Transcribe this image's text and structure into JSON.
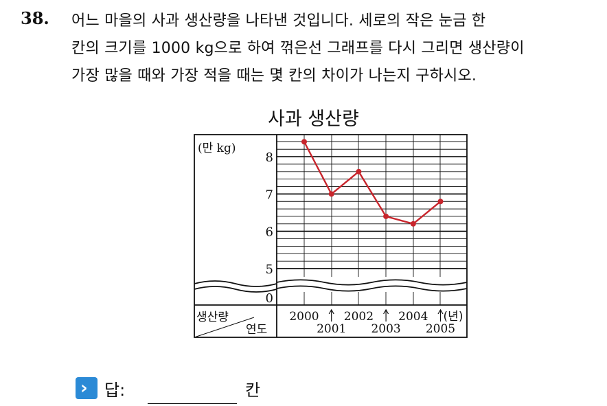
{
  "question": {
    "number": "38.",
    "lines": [
      "어느 마을의 사과 생산량을 나타낸 것입니다. 세로의 작은 눈금 한",
      "칸의 크기를 1000 kg으로 하여 꺾은선 그래프를 다시 그리면 생산량이",
      "가장 많을 때와 가장 적을 때는 몇 칸의 차이가 나는지 구하시오."
    ]
  },
  "chart_data": {
    "type": "line",
    "title": "사과 생산량",
    "unit_label": "(만 kg)",
    "corner_label_top": "생산량",
    "corner_label_bottom": "연도",
    "x_unit": "(년)",
    "categories": [
      "2000",
      "2001",
      "2002",
      "2003",
      "2004",
      "2005"
    ],
    "values": [
      8.4,
      7.0,
      7.6,
      6.4,
      6.2,
      6.8
    ],
    "y_ticks": [
      "0",
      "5",
      "6",
      "7",
      "8"
    ],
    "ylim": [
      5,
      8.4
    ],
    "axis_break": true,
    "grid": true,
    "line_color": "#c8252c"
  },
  "answer": {
    "label": "답:",
    "unit": "칸",
    "icon": "chevron-right-icon"
  }
}
